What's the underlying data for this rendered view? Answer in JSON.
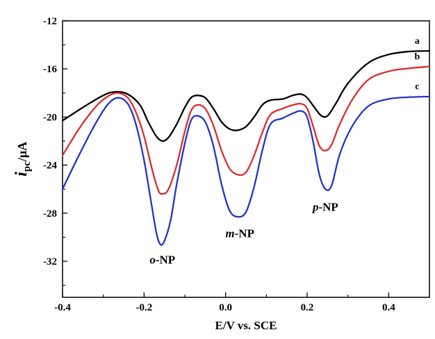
{
  "chart_data": {
    "type": "line",
    "title": "",
    "xlabel": "E/V vs. SCE",
    "ylabel": {
      "main": "i",
      "sub": "pc",
      "unit": "/μA"
    },
    "xlim": [
      -0.4,
      0.5
    ],
    "ylim": [
      -35,
      -12
    ],
    "xticks": [
      -0.4,
      -0.2,
      0.0,
      0.2,
      0.4
    ],
    "xtick_labels": [
      "-0.4",
      "-0.2",
      "0.0",
      "0.2",
      "0.4"
    ],
    "yticks": [
      -12,
      -16,
      -20,
      -24,
      -28,
      -32
    ],
    "ytick_labels": [
      "-12",
      "-16",
      "-20",
      "-24",
      "-28",
      "-32"
    ],
    "grid": false,
    "series": [
      {
        "name": "a",
        "color": "#000000",
        "points": [
          [
            -0.4,
            -20.3
          ],
          [
            -0.35,
            -19.2
          ],
          [
            -0.3,
            -18.2
          ],
          [
            -0.27,
            -17.9
          ],
          [
            -0.24,
            -18.1
          ],
          [
            -0.21,
            -19.0
          ],
          [
            -0.19,
            -20.4
          ],
          [
            -0.17,
            -21.6
          ],
          [
            -0.155,
            -22.0
          ],
          [
            -0.14,
            -21.7
          ],
          [
            -0.12,
            -20.6
          ],
          [
            -0.1,
            -19.2
          ],
          [
            -0.085,
            -18.4
          ],
          [
            -0.07,
            -18.2
          ],
          [
            -0.05,
            -18.4
          ],
          [
            -0.03,
            -19.3
          ],
          [
            -0.01,
            -20.4
          ],
          [
            0.01,
            -21.0
          ],
          [
            0.03,
            -21.1
          ],
          [
            0.05,
            -20.8
          ],
          [
            0.07,
            -20.0
          ],
          [
            0.09,
            -19.0
          ],
          [
            0.11,
            -18.6
          ],
          [
            0.14,
            -18.5
          ],
          [
            0.165,
            -18.2
          ],
          [
            0.185,
            -18.1
          ],
          [
            0.2,
            -18.4
          ],
          [
            0.22,
            -19.3
          ],
          [
            0.235,
            -19.9
          ],
          [
            0.25,
            -19.9
          ],
          [
            0.27,
            -18.9
          ],
          [
            0.3,
            -17.2
          ],
          [
            0.35,
            -15.5
          ],
          [
            0.4,
            -14.8
          ],
          [
            0.45,
            -14.55
          ],
          [
            0.5,
            -14.5
          ]
        ]
      },
      {
        "name": "b",
        "color": "#e02a2a",
        "points": [
          [
            -0.4,
            -23.2
          ],
          [
            -0.36,
            -21.0
          ],
          [
            -0.32,
            -19.2
          ],
          [
            -0.29,
            -18.3
          ],
          [
            -0.265,
            -18.0
          ],
          [
            -0.24,
            -18.4
          ],
          [
            -0.22,
            -19.6
          ],
          [
            -0.2,
            -21.6
          ],
          [
            -0.18,
            -24.4
          ],
          [
            -0.165,
            -26.1
          ],
          [
            -0.155,
            -26.4
          ],
          [
            -0.14,
            -26.0
          ],
          [
            -0.12,
            -24.0
          ],
          [
            -0.1,
            -21.2
          ],
          [
            -0.085,
            -19.5
          ],
          [
            -0.07,
            -19.0
          ],
          [
            -0.05,
            -19.3
          ],
          [
            -0.03,
            -20.7
          ],
          [
            -0.01,
            -22.8
          ],
          [
            0.01,
            -24.3
          ],
          [
            0.03,
            -24.8
          ],
          [
            0.05,
            -24.6
          ],
          [
            0.07,
            -23.2
          ],
          [
            0.09,
            -21.3
          ],
          [
            0.11,
            -19.8
          ],
          [
            0.14,
            -19.3
          ],
          [
            0.165,
            -19.0
          ],
          [
            0.185,
            -18.9
          ],
          [
            0.2,
            -19.3
          ],
          [
            0.215,
            -20.8
          ],
          [
            0.23,
            -22.4
          ],
          [
            0.245,
            -22.8
          ],
          [
            0.26,
            -22.3
          ],
          [
            0.28,
            -20.6
          ],
          [
            0.31,
            -18.6
          ],
          [
            0.35,
            -16.9
          ],
          [
            0.4,
            -16.2
          ],
          [
            0.45,
            -15.95
          ],
          [
            0.5,
            -15.8
          ]
        ]
      },
      {
        "name": "c",
        "color": "#2232c8",
        "points": [
          [
            -0.4,
            -26.0
          ],
          [
            -0.36,
            -23.2
          ],
          [
            -0.32,
            -20.6
          ],
          [
            -0.29,
            -19.0
          ],
          [
            -0.265,
            -18.4
          ],
          [
            -0.24,
            -18.9
          ],
          [
            -0.22,
            -20.6
          ],
          [
            -0.2,
            -23.6
          ],
          [
            -0.185,
            -26.6
          ],
          [
            -0.17,
            -29.6
          ],
          [
            -0.16,
            -30.6
          ],
          [
            -0.15,
            -30.3
          ],
          [
            -0.135,
            -28.6
          ],
          [
            -0.12,
            -25.6
          ],
          [
            -0.1,
            -22.2
          ],
          [
            -0.085,
            -20.3
          ],
          [
            -0.07,
            -19.9
          ],
          [
            -0.05,
            -20.4
          ],
          [
            -0.03,
            -22.4
          ],
          [
            -0.01,
            -25.6
          ],
          [
            0.01,
            -27.8
          ],
          [
            0.03,
            -28.3
          ],
          [
            0.05,
            -27.9
          ],
          [
            0.07,
            -25.8
          ],
          [
            0.09,
            -22.8
          ],
          [
            0.11,
            -20.6
          ],
          [
            0.14,
            -20.1
          ],
          [
            0.165,
            -19.7
          ],
          [
            0.185,
            -19.5
          ],
          [
            0.2,
            -20.0
          ],
          [
            0.215,
            -22.1
          ],
          [
            0.23,
            -24.8
          ],
          [
            0.245,
            -26.0
          ],
          [
            0.26,
            -25.7
          ],
          [
            0.28,
            -23.1
          ],
          [
            0.31,
            -20.8
          ],
          [
            0.35,
            -19.1
          ],
          [
            0.4,
            -18.5
          ],
          [
            0.45,
            -18.35
          ],
          [
            0.5,
            -18.3
          ]
        ]
      }
    ],
    "curve_labels": [
      {
        "text": "a",
        "x": 0.47,
        "y": -13.9
      },
      {
        "text": "b",
        "x": 0.47,
        "y": -15.2
      },
      {
        "text": "c",
        "x": 0.47,
        "y": -17.7
      }
    ],
    "annotations": [
      {
        "prefix": "o",
        "suffix": "-NP",
        "x": -0.155,
        "y": -32.2
      },
      {
        "prefix": "m",
        "suffix": "-NP",
        "x": 0.035,
        "y": -30.0
      },
      {
        "prefix": "p",
        "suffix": "-NP",
        "x": 0.245,
        "y": -27.8
      }
    ]
  }
}
